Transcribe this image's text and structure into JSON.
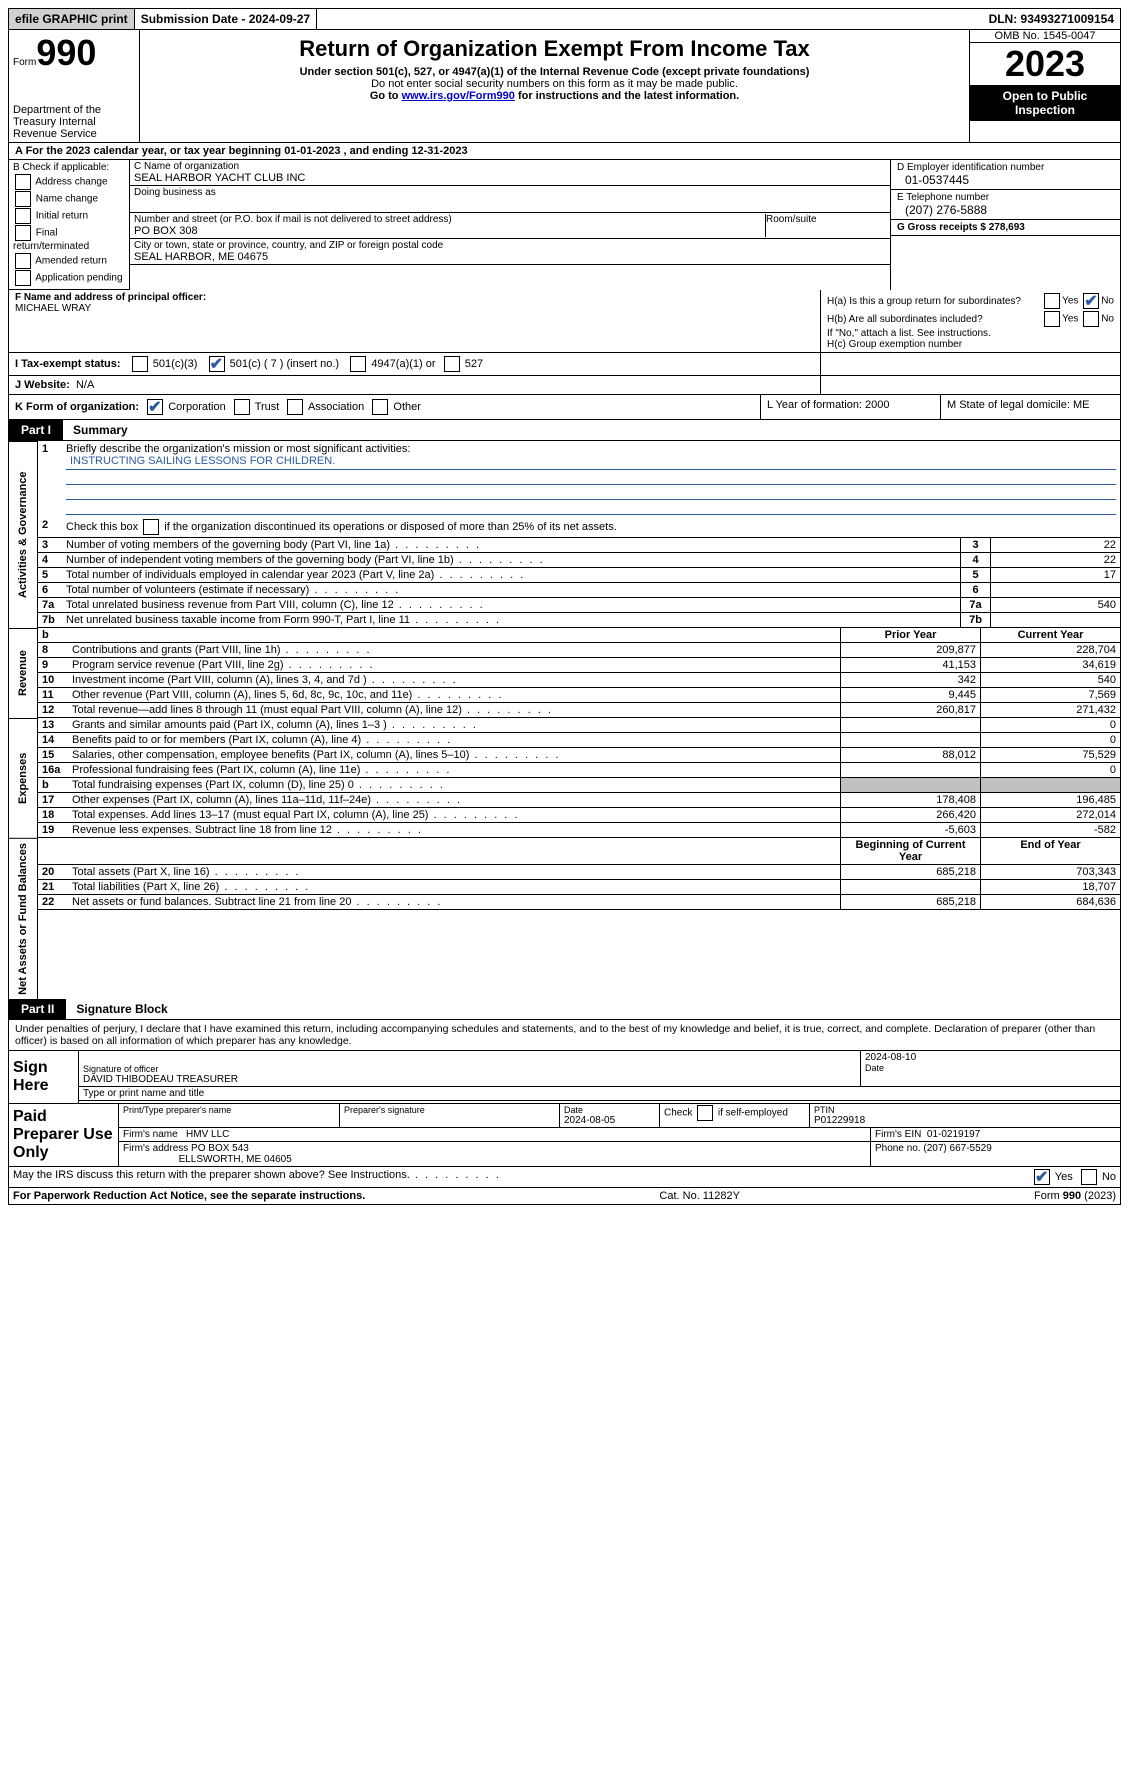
{
  "topBar": {
    "efile": "efile GRAPHIC print",
    "submission": "Submission Date - 2024-09-27",
    "dln": "DLN: 93493271009154"
  },
  "header": {
    "formLabel": "Form",
    "formNumber": "990",
    "dept": "Department of the Treasury Internal Revenue Service",
    "title": "Return of Organization Exempt From Income Tax",
    "subtitle": "Under section 501(c), 527, or 4947(a)(1) of the Internal Revenue Code (except private foundations)",
    "ssn": "Do not enter social security numbers on this form as it may be made public.",
    "goto": "Go to ",
    "link": "www.irs.gov/Form990",
    "instr": " for instructions and the latest information.",
    "omb": "OMB No. 1545-0047",
    "year": "2023",
    "public": "Open to Public Inspection"
  },
  "lineA": "A For the 2023 calendar year, or tax year beginning 01-01-2023    , and ending 12-31-2023",
  "boxB": {
    "title": "B Check if applicable:",
    "items": [
      "Address change",
      "Name change",
      "Initial return",
      "Final return/terminated",
      "Amended return",
      "Application pending"
    ]
  },
  "boxC": {
    "nameLabel": "C Name of organization",
    "name": "SEAL HARBOR YACHT CLUB INC",
    "dba": "Doing business as",
    "addrLabel": "Number and street (or P.O. box if mail is not delivered to street address)",
    "addr": "PO BOX 308",
    "room": "Room/suite",
    "cityLabel": "City or town, state or province, country, and ZIP or foreign postal code",
    "city": "SEAL HARBOR, ME  04675"
  },
  "boxD": {
    "einLabel": "D Employer identification number",
    "ein": "01-0537445",
    "phoneLabel": "E Telephone number",
    "phone": "(207) 276-5888",
    "gross": "G Gross receipts $ 278,693"
  },
  "boxF": {
    "label": "F  Name and address of principal officer:",
    "name": "MICHAEL WRAY"
  },
  "boxH": {
    "a": "H(a)  Is this a group return for subordinates?",
    "b": "H(b)  Are all subordinates included?",
    "bnote": "If \"No,\" attach a list. See instructions.",
    "c": "H(c)  Group exemption number",
    "yes": "Yes",
    "no": "No"
  },
  "lineI": {
    "label": "I    Tax-exempt status:",
    "opt1": "501(c)(3)",
    "opt2": "501(c) ( 7 ) (insert no.)",
    "opt3": "4947(a)(1) or",
    "opt4": "527"
  },
  "lineJ": {
    "label": "J   Website:",
    "val": "N/A"
  },
  "lineK": {
    "label": "K Form of organization:",
    "opts": [
      "Corporation",
      "Trust",
      "Association",
      "Other"
    ]
  },
  "lineL": "L Year of formation: 2000",
  "lineM": "M State of legal domicile: ME",
  "part1": {
    "label": "Part I",
    "title": "Summary"
  },
  "governance": {
    "side": "Activities & Governance",
    "l1": "Briefly describe the organization's mission or most significant activities:",
    "mission": "INSTRUCTING SAILING LESSONS FOR CHILDREN.",
    "l2": "Check this box         if the organization discontinued its operations or disposed of more than 25% of its net assets.",
    "rows": [
      {
        "n": "3",
        "t": "Number of voting members of the governing body (Part VI, line 1a)",
        "v": "22"
      },
      {
        "n": "4",
        "t": "Number of independent voting members of the governing body (Part VI, line 1b)",
        "v": "22"
      },
      {
        "n": "5",
        "t": "Total number of individuals employed in calendar year 2023 (Part V, line 2a)",
        "v": "17"
      },
      {
        "n": "6",
        "t": "Total number of volunteers (estimate if necessary)",
        "v": ""
      },
      {
        "n": "7a",
        "t": "Total unrelated business revenue from Part VIII, column (C), line 12",
        "v": "540"
      },
      {
        "n": "7b",
        "t": "Net unrelated business taxable income from Form 990-T, Part I, line 11",
        "v": ""
      }
    ]
  },
  "revenue": {
    "side": "Revenue",
    "headerLabel": "b",
    "priorLabel": "Prior Year",
    "currentLabel": "Current Year",
    "rows": [
      {
        "n": "8",
        "t": "Contributions and grants (Part VIII, line 1h)",
        "p": "209,877",
        "c": "228,704"
      },
      {
        "n": "9",
        "t": "Program service revenue (Part VIII, line 2g)",
        "p": "41,153",
        "c": "34,619"
      },
      {
        "n": "10",
        "t": "Investment income (Part VIII, column (A), lines 3, 4, and 7d )",
        "p": "342",
        "c": "540"
      },
      {
        "n": "11",
        "t": "Other revenue (Part VIII, column (A), lines 5, 6d, 8c, 9c, 10c, and 11e)",
        "p": "9,445",
        "c": "7,569"
      },
      {
        "n": "12",
        "t": "Total revenue—add lines 8 through 11 (must equal Part VIII, column (A), line 12)",
        "p": "260,817",
        "c": "271,432"
      }
    ]
  },
  "expenses": {
    "side": "Expenses",
    "rows": [
      {
        "n": "13",
        "t": "Grants and similar amounts paid (Part IX, column (A), lines 1–3 )",
        "p": "",
        "c": "0"
      },
      {
        "n": "14",
        "t": "Benefits paid to or for members (Part IX, column (A), line 4)",
        "p": "",
        "c": "0"
      },
      {
        "n": "15",
        "t": "Salaries, other compensation, employee benefits (Part IX, column (A), lines 5–10)",
        "p": "88,012",
        "c": "75,529"
      },
      {
        "n": "16a",
        "t": "Professional fundraising fees (Part IX, column (A), line 11e)",
        "p": "",
        "c": "0"
      },
      {
        "n": "b",
        "t": "Total fundraising expenses (Part IX, column (D), line 25) 0",
        "p": "shaded",
        "c": "shaded"
      },
      {
        "n": "17",
        "t": "Other expenses (Part IX, column (A), lines 11a–11d, 11f–24e)",
        "p": "178,408",
        "c": "196,485"
      },
      {
        "n": "18",
        "t": "Total expenses. Add lines 13–17 (must equal Part IX, column (A), line 25)",
        "p": "266,420",
        "c": "272,014"
      },
      {
        "n": "19",
        "t": "Revenue less expenses. Subtract line 18 from line 12",
        "p": "-5,603",
        "c": "-582"
      }
    ]
  },
  "netassets": {
    "side": "Net Assets or Fund Balances",
    "begLabel": "Beginning of Current Year",
    "endLabel": "End of Year",
    "rows": [
      {
        "n": "20",
        "t": "Total assets (Part X, line 16)",
        "p": "685,218",
        "c": "703,343"
      },
      {
        "n": "21",
        "t": "Total liabilities (Part X, line 26)",
        "p": "",
        "c": "18,707"
      },
      {
        "n": "22",
        "t": "Net assets or fund balances. Subtract line 21 from line 20",
        "p": "685,218",
        "c": "684,636"
      }
    ]
  },
  "part2": {
    "label": "Part II",
    "title": "Signature Block"
  },
  "perjury": "Under penalties of perjury, I declare that I have examined this return, including accompanying schedules and statements, and to the best of my knowledge and belief, it is true, correct, and complete. Declaration of preparer (other than officer) is based on all information of which preparer has any knowledge.",
  "sign": {
    "label": "Sign Here",
    "sigLabel": "Signature of officer",
    "name": "DAVID THIBODEAU TREASURER",
    "nameLabel": "Type or print name and title",
    "date": "2024-08-10",
    "dateLabel": "Date"
  },
  "paid": {
    "label": "Paid Preparer Use Only",
    "prepNameLabel": "Print/Type preparer's name",
    "prepSigLabel": "Preparer's signature",
    "dateLabel": "Date",
    "date": "2024-08-05",
    "checkLabel": "Check         if self-employed",
    "ptinLabel": "PTIN",
    "ptin": "P01229918",
    "firmNameLabel": "Firm's name",
    "firmName": "HMV LLC",
    "firmEinLabel": "Firm's EIN",
    "firmEin": "01-0219197",
    "firmAddrLabel": "Firm's address",
    "firmAddr1": "PO BOX 543",
    "firmAddr2": "ELLSWORTH, ME  04605",
    "phoneLabel": "Phone no.",
    "phone": "(207) 667-5529"
  },
  "discuss": "May the IRS discuss this return with the preparer shown above? See Instructions.",
  "footer": {
    "left": "For Paperwork Reduction Act Notice, see the separate instructions.",
    "mid": "Cat. No. 11282Y",
    "right": "Form 990 (2023)"
  }
}
